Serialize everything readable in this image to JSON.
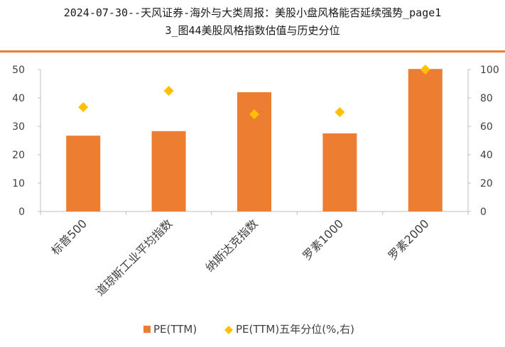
{
  "title": {
    "line1": "2024-07-30--天风证券-海外与大类周报：美股小盘风格能否延续强势_page1",
    "line2": "3_图44美股风格指数估值与历史分位"
  },
  "colors": {
    "accent_rule": "#ED7D31",
    "bar": "#ED7D31",
    "marker": "#FFC000",
    "axis": "#BFBFBF",
    "text": "#404040"
  },
  "chart_data": {
    "type": "bar",
    "categories": [
      "标普500",
      "道琼斯工业平均指数",
      "纳斯达克指数",
      "罗素1000",
      "罗素2000"
    ],
    "series": [
      {
        "name": "PE(TTM)",
        "type": "bar",
        "axis": "left",
        "values": [
          26.7,
          28.3,
          42.0,
          27.5,
          50.2
        ]
      },
      {
        "name": "PE(TTM)五年分位(%,右)",
        "type": "scatter",
        "marker": "diamond",
        "axis": "right",
        "values": [
          73.5,
          85.0,
          68.5,
          70.0,
          100.0
        ]
      }
    ],
    "y_left": {
      "lim": [
        0,
        50
      ],
      "ticks": [
        "0",
        "10",
        "20",
        "30",
        "40",
        "50"
      ]
    },
    "y_right": {
      "lim": [
        0,
        100
      ],
      "ticks": [
        "0",
        "20",
        "40",
        "60",
        "80",
        "100"
      ]
    },
    "legend_position": "bottom",
    "grid": false
  }
}
